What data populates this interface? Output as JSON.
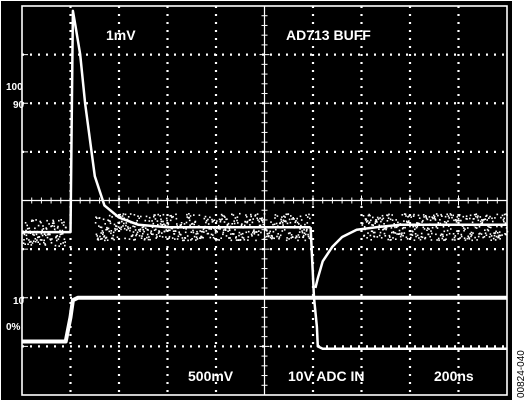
{
  "chart_data": {
    "type": "line",
    "title": "",
    "xlabel": "",
    "ylabel": "",
    "grid": true,
    "x_range": [
      0,
      10
    ],
    "y_range": [
      0,
      8
    ],
    "annotations": {
      "top_left": "1mV",
      "top_right": "AD713 BUFF",
      "bottom_ch1": "500mV",
      "bottom_ch2": "10V ADC IN",
      "bottom_time": "200ns"
    },
    "ref_labels": [
      "100",
      "90",
      "10",
      "0%"
    ],
    "figure_code": "00824-040",
    "series": [
      {
        "x": [
          0,
          0.8,
          0.9,
          1.0,
          1.05,
          1.15,
          1.4,
          1.8,
          2.4,
          3,
          4,
          5,
          6,
          7,
          8,
          9,
          10
        ],
        "y": [
          1.1,
          1.1,
          1.1,
          1.6,
          1.95,
          2.0,
          2.0,
          2.0,
          2.0,
          2.0,
          2.0,
          2.0,
          2.0,
          2.0,
          2.0,
          2.0,
          2.0
        ]
      },
      {
        "x": [
          0,
          0.9,
          1.0,
          1.05,
          1.1,
          1.2,
          1.3,
          1.5,
          1.7,
          2.0,
          2.4,
          3.0,
          4,
          5,
          5.95
        ],
        "y": [
          3.35,
          3.35,
          3.35,
          7.9,
          7.6,
          7.0,
          6.0,
          4.5,
          3.9,
          3.65,
          3.5,
          3.45,
          3.45,
          3.45,
          3.45
        ]
      },
      {
        "x": [
          5.95,
          6.02,
          6.08,
          6.1,
          6.2,
          6.4,
          6.7,
          7.0,
          7.5,
          8,
          9,
          10
        ],
        "y": [
          3.45,
          2.0,
          1.4,
          1.0,
          0.95,
          0.95,
          0.95,
          0.95,
          0.95,
          0.95,
          0.95,
          0.95
        ]
      },
      {
        "x": [
          6.05,
          6.1,
          6.2,
          6.4,
          6.6,
          6.9,
          7.3,
          7.8,
          8.5,
          9.2,
          10
        ],
        "y": [
          2.2,
          2.4,
          2.75,
          3.05,
          3.25,
          3.4,
          3.45,
          3.5,
          3.5,
          3.5,
          3.5
        ]
      }
    ]
  }
}
